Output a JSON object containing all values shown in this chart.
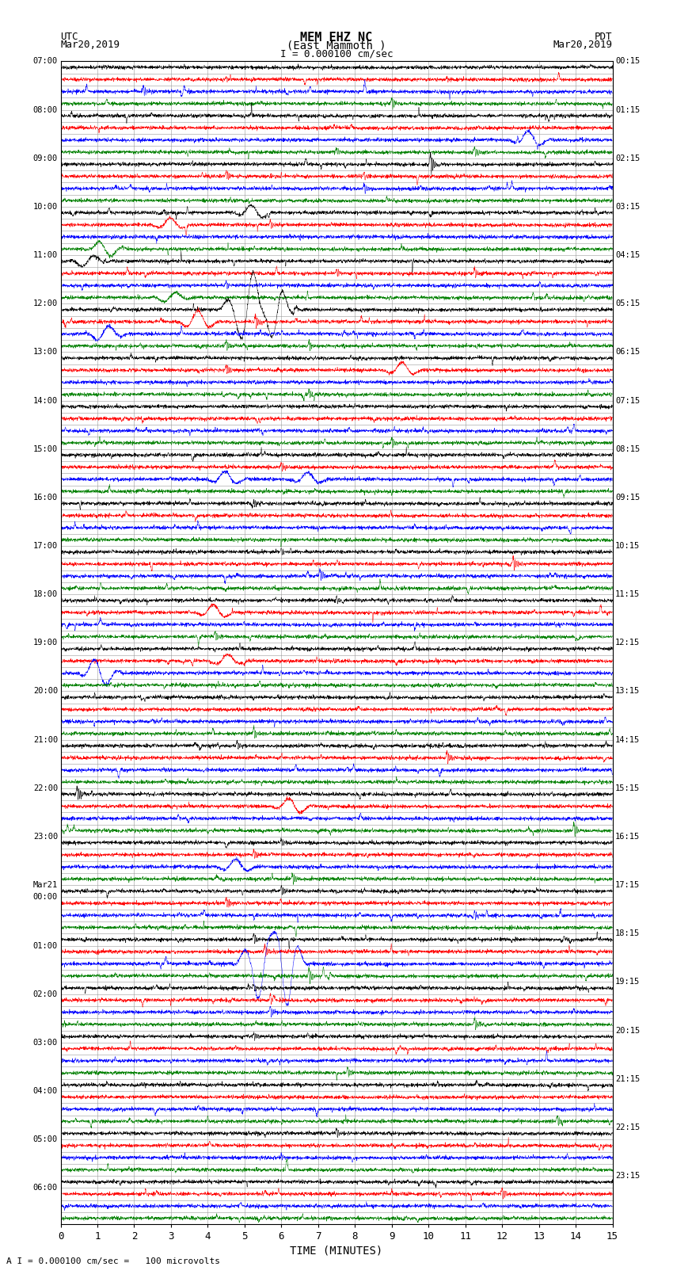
{
  "title_line1": "MEM EHZ NC",
  "title_line2": "(East Mammoth )",
  "scale_label": "I = 0.000100 cm/sec",
  "bottom_label": "A I = 0.000100 cm/sec =   100 microvolts",
  "xlabel": "TIME (MINUTES)",
  "utc_label1": "UTC",
  "utc_label2": "Mar20,2019",
  "pdt_label1": "PDT",
  "pdt_label2": "Mar20,2019",
  "left_times": [
    "07:00",
    "",
    "",
    "",
    "08:00",
    "",
    "",
    "",
    "09:00",
    "",
    "",
    "",
    "10:00",
    "",
    "",
    "",
    "11:00",
    "",
    "",
    "",
    "12:00",
    "",
    "",
    "",
    "13:00",
    "",
    "",
    "",
    "14:00",
    "",
    "",
    "",
    "15:00",
    "",
    "",
    "",
    "16:00",
    "",
    "",
    "",
    "17:00",
    "",
    "",
    "",
    "18:00",
    "",
    "",
    "",
    "19:00",
    "",
    "",
    "",
    "20:00",
    "",
    "",
    "",
    "21:00",
    "",
    "",
    "",
    "22:00",
    "",
    "",
    "",
    "23:00",
    "",
    "",
    "",
    "Mar21",
    "00:00",
    "",
    "",
    "",
    "01:00",
    "",
    "",
    "",
    "02:00",
    "",
    "",
    "",
    "03:00",
    "",
    "",
    "",
    "04:00",
    "",
    "",
    "",
    "05:00",
    "",
    "",
    "",
    "06:00",
    "",
    ""
  ],
  "right_times": [
    "00:15",
    "",
    "",
    "",
    "01:15",
    "",
    "",
    "",
    "02:15",
    "",
    "",
    "",
    "03:15",
    "",
    "",
    "",
    "04:15",
    "",
    "",
    "",
    "05:15",
    "",
    "",
    "",
    "06:15",
    "",
    "",
    "",
    "07:15",
    "",
    "",
    "",
    "08:15",
    "",
    "",
    "",
    "09:15",
    "",
    "",
    "",
    "10:15",
    "",
    "",
    "",
    "11:15",
    "",
    "",
    "",
    "12:15",
    "",
    "",
    "",
    "13:15",
    "",
    "",
    "",
    "14:15",
    "",
    "",
    "",
    "15:15",
    "",
    "",
    "",
    "16:15",
    "",
    "",
    "",
    "17:15",
    "",
    "",
    "",
    "18:15",
    "",
    "",
    "",
    "19:15",
    "",
    "",
    "",
    "20:15",
    "",
    "",
    "",
    "21:15",
    "",
    "",
    "",
    "22:15",
    "",
    "",
    "",
    "23:15",
    "",
    ""
  ],
  "colors": [
    "black",
    "red",
    "blue",
    "green"
  ],
  "n_rows": 96,
  "bg_color": "white",
  "grid_color": "#999999",
  "figwidth": 8.5,
  "figheight": 16.13,
  "dpi": 100,
  "xmin": 0,
  "xmax": 15,
  "xticks": [
    0,
    1,
    2,
    3,
    4,
    5,
    6,
    7,
    8,
    9,
    10,
    11,
    12,
    13,
    14,
    15
  ]
}
